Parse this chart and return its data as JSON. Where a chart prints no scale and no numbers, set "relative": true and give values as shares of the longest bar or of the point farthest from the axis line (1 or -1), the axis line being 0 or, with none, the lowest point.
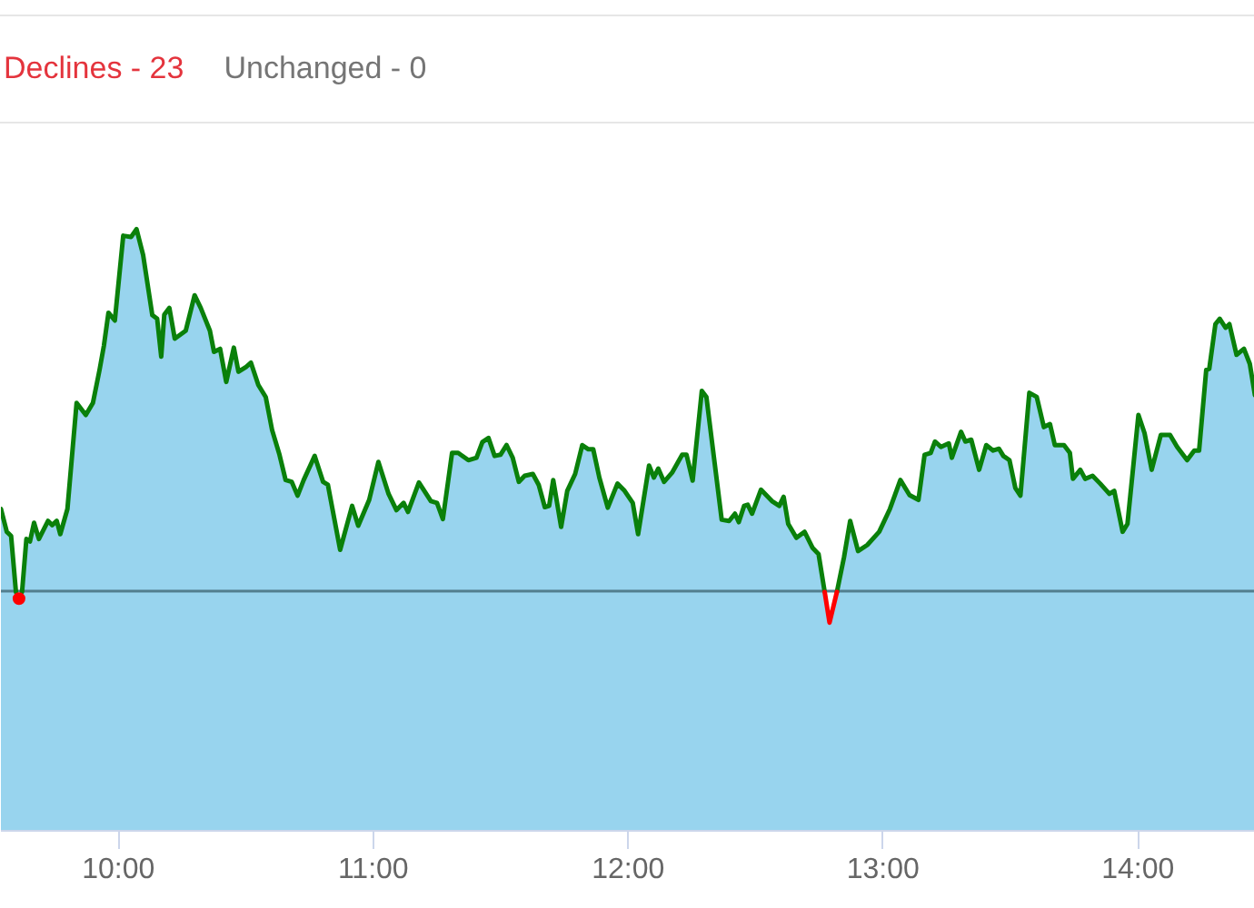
{
  "chart_data": {
    "type": "area",
    "relative": true,
    "line_style": "solid",
    "annotations": [
      "Declines - 23",
      "Unchanged - 0"
    ],
    "xlim": [
      9.539,
      14.459
    ],
    "xticks": [
      {
        "value": 10,
        "label": "10:00"
      },
      {
        "value": 11,
        "label": "11:00"
      },
      {
        "value": 12,
        "label": "12:00"
      },
      {
        "value": 13,
        "label": "13:00"
      },
      {
        "value": 14,
        "label": "14:00"
      }
    ],
    "ref_lines": [
      {
        "axis": "y",
        "value": 0.397,
        "color": "#527e8e"
      }
    ],
    "x": [
      9.539,
      9.562,
      9.579,
      9.598,
      9.61,
      9.622,
      9.639,
      9.653,
      9.669,
      9.688,
      9.724,
      9.74,
      9.758,
      9.772,
      9.8,
      9.836,
      9.872,
      9.9,
      9.926,
      9.943,
      9.961,
      9.986,
      10.019,
      10.05,
      10.071,
      10.097,
      10.133,
      10.152,
      10.168,
      10.18,
      10.2,
      10.221,
      10.264,
      10.299,
      10.323,
      10.359,
      10.375,
      10.399,
      10.423,
      10.453,
      10.471,
      10.501,
      10.52,
      10.549,
      10.578,
      10.603,
      10.632,
      10.656,
      10.68,
      10.703,
      10.727,
      10.77,
      10.803,
      10.822,
      10.87,
      10.917,
      10.941,
      10.984,
      11.02,
      11.06,
      11.091,
      11.119,
      11.136,
      11.179,
      11.226,
      11.25,
      11.273,
      11.309,
      11.333,
      11.373,
      11.405,
      11.428,
      11.452,
      11.476,
      11.499,
      11.523,
      11.547,
      11.571,
      11.594,
      11.626,
      11.649,
      11.673,
      11.69,
      11.706,
      11.737,
      11.761,
      11.792,
      11.82,
      11.844,
      11.863,
      11.887,
      11.92,
      11.958,
      11.986,
      12.018,
      12.039,
      12.082,
      12.101,
      12.118,
      12.141,
      12.172,
      12.212,
      12.229,
      12.253,
      12.289,
      12.307,
      12.367,
      12.396,
      12.419,
      12.434,
      12.455,
      12.469,
      12.486,
      12.521,
      12.564,
      12.593,
      12.61,
      12.628,
      12.66,
      12.692,
      12.724,
      12.747,
      12.771,
      12.79,
      12.819,
      12.847,
      12.871,
      12.902,
      12.938,
      12.985,
      13.027,
      13.068,
      13.104,
      13.139,
      13.163,
      13.187,
      13.204,
      13.227,
      13.258,
      13.27,
      13.306,
      13.323,
      13.346,
      13.377,
      13.405,
      13.432,
      13.455,
      13.472,
      13.496,
      13.519,
      13.539,
      13.574,
      13.603,
      13.631,
      13.655,
      13.674,
      13.71,
      13.733,
      13.745,
      13.774,
      13.793,
      13.822,
      13.852,
      13.888,
      13.907,
      13.94,
      13.959,
      14.002,
      14.026,
      14.054,
      14.09,
      14.126,
      14.154,
      14.193,
      14.221,
      14.24,
      14.268,
      14.28,
      14.304,
      14.321,
      14.344,
      14.359,
      14.387,
      14.416,
      14.439,
      14.459
    ],
    "series": [
      {
        "color": "#98d4ee",
        "values": [
          0.535,
          0.497,
          0.49,
          0.397,
          0.386,
          0.397,
          0.485,
          0.481,
          0.512,
          0.485,
          0.515,
          0.508,
          0.515,
          0.493,
          0.535,
          0.711,
          0.691,
          0.711,
          0.766,
          0.806,
          0.861,
          0.848,
          0.989,
          0.987,
          1.0,
          0.957,
          0.857,
          0.851,
          0.788,
          0.858,
          0.869,
          0.818,
          0.831,
          0.89,
          0.869,
          0.831,
          0.796,
          0.801,
          0.746,
          0.803,
          0.763,
          0.771,
          0.778,
          0.741,
          0.721,
          0.666,
          0.625,
          0.583,
          0.58,
          0.557,
          0.583,
          0.623,
          0.58,
          0.575,
          0.467,
          0.54,
          0.507,
          0.55,
          0.613,
          0.56,
          0.533,
          0.545,
          0.53,
          0.579,
          0.548,
          0.545,
          0.518,
          0.628,
          0.628,
          0.616,
          0.62,
          0.646,
          0.653,
          0.623,
          0.625,
          0.641,
          0.62,
          0.58,
          0.59,
          0.593,
          0.575,
          0.538,
          0.54,
          0.583,
          0.505,
          0.565,
          0.593,
          0.641,
          0.634,
          0.634,
          0.587,
          0.537,
          0.577,
          0.565,
          0.545,
          0.493,
          0.607,
          0.587,
          0.602,
          0.58,
          0.595,
          0.625,
          0.625,
          0.582,
          0.731,
          0.721,
          0.517,
          0.515,
          0.527,
          0.513,
          0.54,
          0.542,
          0.527,
          0.567,
          0.548,
          0.54,
          0.555,
          0.51,
          0.487,
          0.497,
          0.47,
          0.46,
          0.397,
          0.346,
          0.397,
          0.455,
          0.515,
          0.465,
          0.475,
          0.497,
          0.535,
          0.583,
          0.558,
          0.55,
          0.625,
          0.628,
          0.647,
          0.638,
          0.644,
          0.62,
          0.663,
          0.647,
          0.65,
          0.6,
          0.641,
          0.632,
          0.635,
          0.623,
          0.616,
          0.57,
          0.557,
          0.728,
          0.721,
          0.671,
          0.676,
          0.641,
          0.641,
          0.628,
          0.585,
          0.6,
          0.585,
          0.59,
          0.577,
          0.56,
          0.565,
          0.497,
          0.51,
          0.691,
          0.661,
          0.6,
          0.658,
          0.658,
          0.638,
          0.616,
          0.632,
          0.632,
          0.766,
          0.768,
          0.842,
          0.851,
          0.836,
          0.842,
          0.791,
          0.801,
          0.776,
          0.724
        ]
      },
      {
        "type": "line",
        "color": "#0a800a",
        "values": [
          0.535,
          0.497,
          0.49,
          0.397,
          null,
          0.397,
          0.485,
          0.481,
          0.512,
          0.485,
          0.515,
          0.508,
          0.515,
          0.493,
          0.535,
          0.711,
          0.691,
          0.711,
          0.766,
          0.806,
          0.861,
          0.848,
          0.989,
          0.987,
          1.0,
          0.957,
          0.857,
          0.851,
          0.788,
          0.858,
          0.869,
          0.818,
          0.831,
          0.89,
          0.869,
          0.831,
          0.796,
          0.801,
          0.746,
          0.803,
          0.763,
          0.771,
          0.778,
          0.741,
          0.721,
          0.666,
          0.625,
          0.583,
          0.58,
          0.557,
          0.583,
          0.623,
          0.58,
          0.575,
          0.467,
          0.54,
          0.507,
          0.55,
          0.613,
          0.56,
          0.533,
          0.545,
          0.53,
          0.579,
          0.548,
          0.545,
          0.518,
          0.628,
          0.628,
          0.616,
          0.62,
          0.646,
          0.653,
          0.623,
          0.625,
          0.641,
          0.62,
          0.58,
          0.59,
          0.593,
          0.575,
          0.538,
          0.54,
          0.583,
          0.505,
          0.565,
          0.593,
          0.641,
          0.634,
          0.634,
          0.587,
          0.537,
          0.577,
          0.565,
          0.545,
          0.493,
          0.607,
          0.587,
          0.602,
          0.58,
          0.595,
          0.625,
          0.625,
          0.582,
          0.731,
          0.721,
          0.517,
          0.515,
          0.527,
          0.513,
          0.54,
          0.542,
          0.527,
          0.567,
          0.548,
          0.54,
          0.555,
          0.51,
          0.487,
          0.497,
          0.47,
          0.46,
          0.397,
          null,
          0.397,
          0.455,
          0.515,
          0.465,
          0.475,
          0.497,
          0.535,
          0.583,
          0.558,
          0.55,
          0.625,
          0.628,
          0.647,
          0.638,
          0.644,
          0.62,
          0.663,
          0.647,
          0.65,
          0.6,
          0.641,
          0.632,
          0.635,
          0.623,
          0.616,
          0.57,
          0.557,
          0.728,
          0.721,
          0.671,
          0.676,
          0.641,
          0.641,
          0.628,
          0.585,
          0.6,
          0.585,
          0.59,
          0.577,
          0.56,
          0.565,
          0.497,
          0.51,
          0.691,
          0.661,
          0.6,
          0.658,
          0.658,
          0.638,
          0.616,
          0.632,
          0.632,
          0.766,
          0.768,
          0.842,
          0.851,
          0.836,
          0.842,
          0.791,
          0.801,
          0.776,
          0.724
        ]
      },
      {
        "type": "line",
        "color": "#ff0000",
        "values": [
          null,
          null,
          null,
          null,
          null,
          null,
          null,
          null,
          null,
          null,
          null,
          null,
          null,
          null,
          null,
          null,
          null,
          null,
          null,
          null,
          null,
          null,
          null,
          null,
          null,
          null,
          null,
          null,
          null,
          null,
          null,
          null,
          null,
          null,
          null,
          null,
          null,
          null,
          null,
          null,
          null,
          null,
          null,
          null,
          null,
          null,
          null,
          null,
          null,
          null,
          null,
          null,
          null,
          null,
          null,
          null,
          null,
          null,
          null,
          null,
          null,
          null,
          null,
          null,
          null,
          null,
          null,
          null,
          null,
          null,
          null,
          null,
          null,
          null,
          null,
          null,
          null,
          null,
          null,
          null,
          null,
          null,
          null,
          null,
          null,
          null,
          null,
          null,
          null,
          null,
          null,
          null,
          null,
          null,
          null,
          null,
          null,
          null,
          null,
          null,
          null,
          null,
          null,
          null,
          null,
          null,
          null,
          null,
          null,
          null,
          null,
          null,
          null,
          null,
          null,
          null,
          null,
          null,
          null,
          null,
          null,
          null,
          0.397,
          0.346,
          0.397,
          null,
          null,
          null,
          null,
          null,
          null,
          null,
          null,
          null,
          null,
          null,
          null,
          null,
          null,
          null,
          null,
          null,
          null,
          null,
          null,
          null,
          null,
          null,
          null,
          null,
          null,
          null,
          null,
          null,
          null,
          null,
          null,
          null,
          null,
          null,
          null,
          null,
          null,
          null,
          null,
          null,
          null,
          null,
          null,
          null,
          null,
          null,
          null,
          null,
          null,
          null,
          null,
          null,
          null,
          null,
          null,
          null,
          null,
          null,
          null,
          null
        ]
      },
      {
        "type": "scatter",
        "color": "#ff0000",
        "x": [
          9.61
        ],
        "values": [
          0.386
        ]
      }
    ]
  }
}
